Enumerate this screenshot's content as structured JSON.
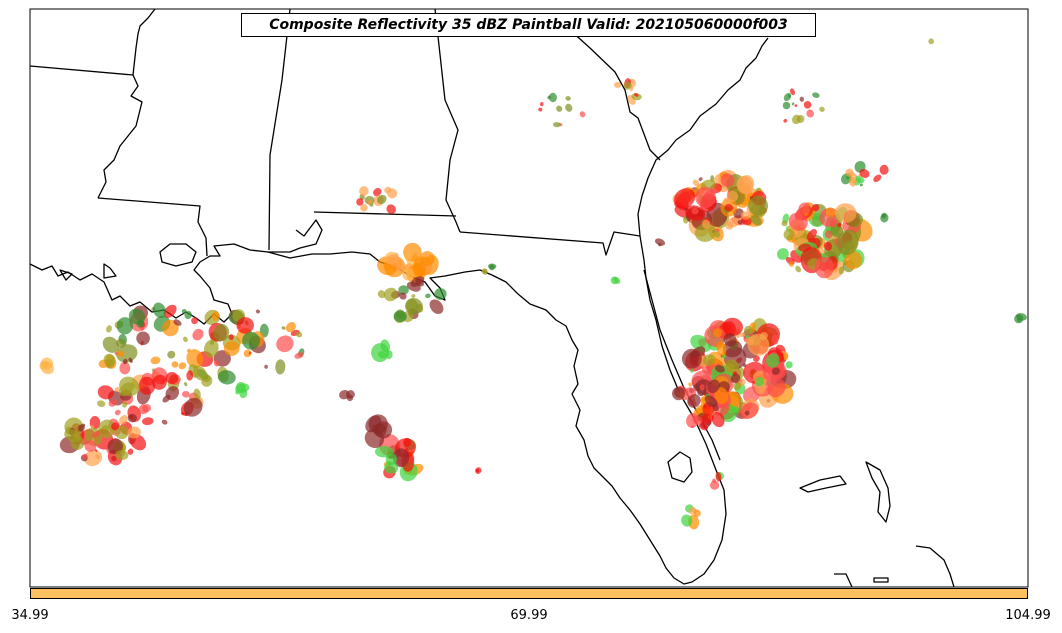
{
  "title": "Composite Reflectivity 35 dBZ Paintball Valid: 202105060000f003",
  "colorbar": {
    "fill_color": "#ffc061",
    "ticks": [
      "34.99",
      "69.99",
      "104.99"
    ]
  },
  "palette": {
    "red": "#f51010",
    "light_red": "#ff4c4c",
    "orange": "#ff8c00",
    "light_orange": "#ffa14d",
    "yellow_orange": "#ffb347",
    "olive": "#a0a020",
    "dark_olive": "#7f8f1f",
    "green": "#2e8b2e",
    "light_green": "#3cd43c",
    "brown_red": "#8b2a2a"
  }
}
